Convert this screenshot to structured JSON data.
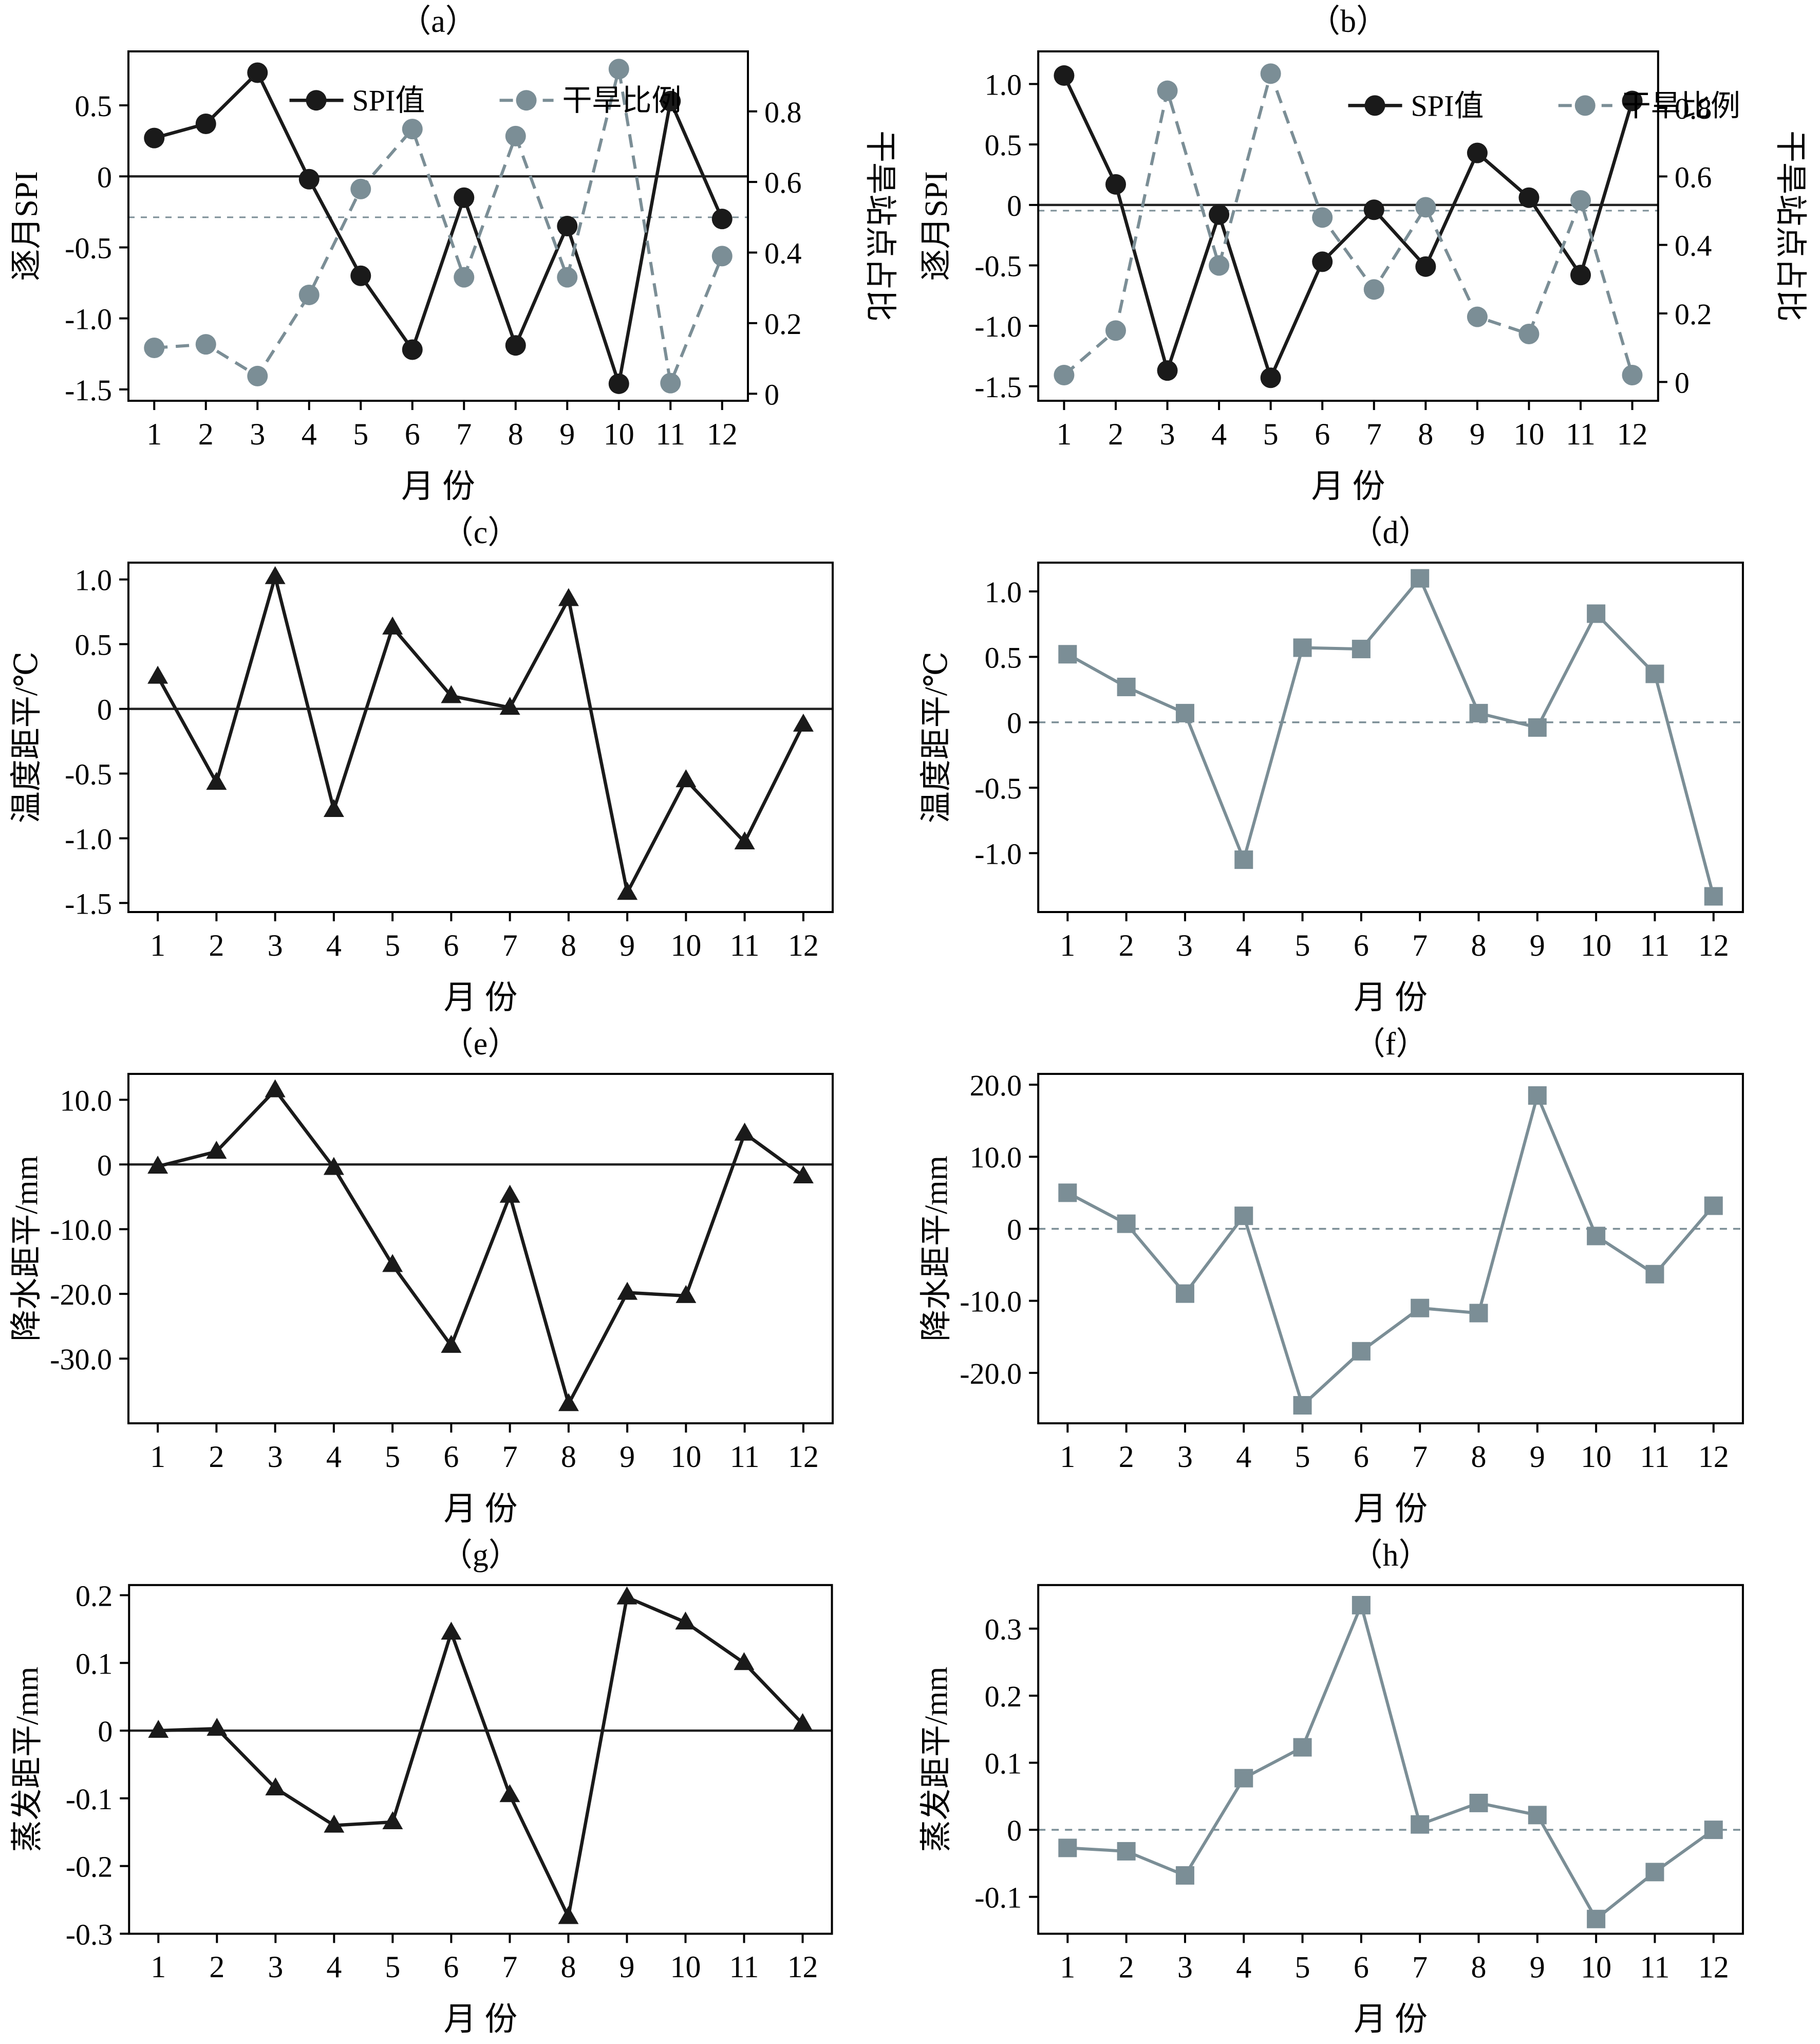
{
  "figure": {
    "background": "#ffffff",
    "colors": {
      "black": "#1a1a1a",
      "gray": "#7b8e96",
      "axis": "#000000"
    },
    "xlabel": "月 份",
    "legend_labels": {
      "spi": "SPI值",
      "drought": "干旱比例"
    }
  },
  "chart_data": [
    {
      "id": "a",
      "type": "line",
      "title": "（a）",
      "xlabel": "月 份",
      "ylabel": "逐月SPI",
      "ylabel_right": "干旱站点占比",
      "x": [
        1,
        2,
        3,
        4,
        5,
        6,
        7,
        8,
        9,
        10,
        11,
        12
      ],
      "ylim": [
        -1.58,
        0.88
      ],
      "ytick_vals": [
        0.5,
        0,
        -0.5,
        -1.0,
        -1.5
      ],
      "ytick_labels": [
        "0.5",
        "0",
        "-0.5",
        "-1.0",
        "-1.5"
      ],
      "ylim_right": [
        -0.02,
        0.97
      ],
      "ytick_vals_right": [
        0.8,
        0.6,
        0.4,
        0.2,
        0
      ],
      "ytick_labels_right": [
        "0.8",
        "0.6",
        "0.4",
        "0.2",
        "0"
      ],
      "zero_line": "solid",
      "threshold_right": 0.5,
      "legend": [
        "SPI值",
        "干旱比例"
      ],
      "legend_pos": [
        0.26,
        0.14
      ],
      "series": [
        {
          "name": "SPI值",
          "axis": "left",
          "color": "black",
          "marker": "circle",
          "line": "solid",
          "values": [
            0.27,
            0.37,
            0.73,
            -0.02,
            -0.7,
            -1.22,
            -0.15,
            -1.19,
            -0.35,
            -1.46,
            0.53,
            -0.3
          ]
        },
        {
          "name": "干旱比例",
          "axis": "right",
          "color": "gray",
          "marker": "circle",
          "line": "dashed",
          "values": [
            0.13,
            0.14,
            0.05,
            0.28,
            0.58,
            0.75,
            0.33,
            0.73,
            0.33,
            0.92,
            0.03,
            0.39
          ]
        }
      ]
    },
    {
      "id": "b",
      "type": "line",
      "title": "（b）",
      "xlabel": "月 份",
      "ylabel": "逐月SPI",
      "ylabel_right": "干旱站点占比",
      "x": [
        1,
        2,
        3,
        4,
        5,
        6,
        7,
        8,
        9,
        10,
        11,
        12
      ],
      "ylim": [
        -1.62,
        1.27
      ],
      "ytick_vals": [
        1.0,
        0.5,
        0,
        -0.5,
        -1.0,
        -1.5
      ],
      "ytick_labels": [
        "1.0",
        "0.5",
        "0",
        "-0.5",
        "-1.0",
        "-1.5"
      ],
      "ylim_right": [
        -0.055,
        0.965
      ],
      "ytick_vals_right": [
        0.8,
        0.6,
        0.4,
        0.2,
        0
      ],
      "ytick_labels_right": [
        "0.8",
        "0.6",
        "0.4",
        "0.2",
        "0"
      ],
      "zero_line": "solid",
      "threshold_right": 0.5,
      "legend": [
        "SPI值",
        "干旱比例"
      ],
      "legend_pos": [
        0.5,
        0.155
      ],
      "series": [
        {
          "name": "SPI值",
          "axis": "left",
          "color": "black",
          "marker": "circle",
          "line": "solid",
          "values": [
            1.07,
            0.17,
            -1.37,
            -0.08,
            -1.43,
            -0.47,
            -0.04,
            -0.51,
            0.43,
            0.06,
            -0.58,
            0.86
          ]
        },
        {
          "name": "干旱比例",
          "axis": "right",
          "color": "gray",
          "marker": "circle",
          "line": "dashed",
          "values": [
            0.02,
            0.15,
            0.85,
            0.34,
            0.9,
            0.48,
            0.27,
            0.51,
            0.19,
            0.14,
            0.53,
            0.02
          ]
        }
      ]
    },
    {
      "id": "c",
      "type": "line",
      "title": "（c）",
      "xlabel": "月 份",
      "ylabel": "温度距平/℃",
      "x": [
        1,
        2,
        3,
        4,
        5,
        6,
        7,
        8,
        9,
        10,
        11,
        12
      ],
      "ylim": [
        -1.57,
        1.13
      ],
      "ytick_vals": [
        1.0,
        0.5,
        0,
        -0.5,
        -1.0,
        -1.5
      ],
      "ytick_labels": [
        "1.0",
        "0.5",
        "0",
        "-0.5",
        "-1.0",
        "-1.5"
      ],
      "zero_line": "solid",
      "series": [
        {
          "name": "温度距平",
          "axis": "left",
          "color": "black",
          "marker": "triangle",
          "line": "solid",
          "values": [
            0.25,
            -0.57,
            1.02,
            -0.78,
            0.63,
            0.1,
            0.01,
            0.85,
            -1.42,
            -0.55,
            -1.03,
            -0.12
          ]
        }
      ]
    },
    {
      "id": "d",
      "type": "line",
      "title": "（d）",
      "xlabel": "月 份",
      "ylabel": "温度距平/℃",
      "x": [
        1,
        2,
        3,
        4,
        5,
        6,
        7,
        8,
        9,
        10,
        11,
        12
      ],
      "ylim": [
        -1.45,
        1.22
      ],
      "ytick_vals": [
        1.0,
        0.5,
        0,
        -0.5,
        -1.0
      ],
      "ytick_labels": [
        "1.0",
        "0.5",
        "0",
        "-0.5",
        "-1.0"
      ],
      "zero_line": "dashed",
      "series": [
        {
          "name": "温度距平",
          "axis": "left",
          "color": "gray",
          "marker": "square",
          "line": "solid",
          "values": [
            0.52,
            0.27,
            0.07,
            -1.05,
            0.57,
            0.56,
            1.1,
            0.07,
            -0.04,
            0.83,
            0.37,
            -1.33
          ]
        }
      ]
    },
    {
      "id": "e",
      "type": "line",
      "title": "（e）",
      "xlabel": "月 份",
      "ylabel": "降水距平/mm",
      "x": [
        1,
        2,
        3,
        4,
        5,
        6,
        7,
        8,
        9,
        10,
        11,
        12
      ],
      "ylim": [
        -40,
        14
      ],
      "ytick_vals": [
        10,
        0,
        -10,
        -20,
        -30
      ],
      "ytick_labels": [
        "10.0",
        "0",
        "-10.0",
        "-20.0",
        "-30.0"
      ],
      "zero_line": "solid",
      "series": [
        {
          "name": "降水距平",
          "axis": "left",
          "color": "black",
          "marker": "triangle",
          "line": "solid",
          "values": [
            -0.3,
            2.0,
            11.5,
            -0.5,
            -15.5,
            -28.0,
            -4.8,
            -37.0,
            -19.8,
            -20.3,
            4.8,
            -1.8
          ]
        }
      ]
    },
    {
      "id": "f",
      "type": "line",
      "title": "（f）",
      "xlabel": "月 份",
      "ylabel": "降水距平/mm",
      "x": [
        1,
        2,
        3,
        4,
        5,
        6,
        7,
        8,
        9,
        10,
        11,
        12
      ],
      "ylim": [
        -27,
        21.5
      ],
      "ytick_vals": [
        20,
        10,
        0,
        -10,
        -20
      ],
      "ytick_labels": [
        "20.0",
        "10.0",
        "0",
        "-10.0",
        "-20.0"
      ],
      "zero_line": "dashed",
      "series": [
        {
          "name": "降水距平",
          "axis": "left",
          "color": "gray",
          "marker": "square",
          "line": "solid",
          "values": [
            5.0,
            0.7,
            -9.0,
            1.8,
            -24.5,
            -17.0,
            -11.0,
            -11.7,
            18.5,
            -1.0,
            -6.3,
            3.2
          ]
        }
      ]
    },
    {
      "id": "g",
      "type": "line",
      "title": "（g）",
      "xlabel": "月 份",
      "ylabel": "蒸发距平/mm",
      "x": [
        1,
        2,
        3,
        4,
        5,
        6,
        7,
        8,
        9,
        10,
        11,
        12
      ],
      "ylim": [
        -0.3,
        0.215
      ],
      "ytick_vals": [
        0.2,
        0.1,
        0,
        -0.1,
        -0.2,
        -0.3
      ],
      "ytick_labels": [
        "0.2",
        "0.1",
        "0",
        "-0.1",
        "-0.2",
        "-0.3"
      ],
      "zero_line": "solid",
      "series": [
        {
          "name": "蒸发距平",
          "axis": "left",
          "color": "black",
          "marker": "triangle",
          "line": "solid",
          "values": [
            0.0,
            0.003,
            -0.085,
            -0.14,
            -0.135,
            0.145,
            -0.095,
            -0.275,
            0.197,
            0.16,
            0.1,
            0.01
          ]
        }
      ]
    },
    {
      "id": "h",
      "type": "line",
      "title": "（h）",
      "xlabel": "月 份",
      "ylabel": "蒸发距平/mm",
      "x": [
        1,
        2,
        3,
        4,
        5,
        6,
        7,
        8,
        9,
        10,
        11,
        12
      ],
      "ylim": [
        -0.155,
        0.365
      ],
      "ytick_vals": [
        0.3,
        0.2,
        0.1,
        0,
        -0.1
      ],
      "ytick_labels": [
        "0.3",
        "0.2",
        "0.1",
        "0",
        "-0.1"
      ],
      "zero_line": "dashed",
      "series": [
        {
          "name": "蒸发距平",
          "axis": "left",
          "color": "gray",
          "marker": "square",
          "line": "solid",
          "values": [
            -0.027,
            -0.032,
            -0.068,
            0.077,
            0.123,
            0.335,
            0.008,
            0.04,
            0.022,
            -0.133,
            -0.063,
            0.0
          ]
        }
      ]
    }
  ]
}
